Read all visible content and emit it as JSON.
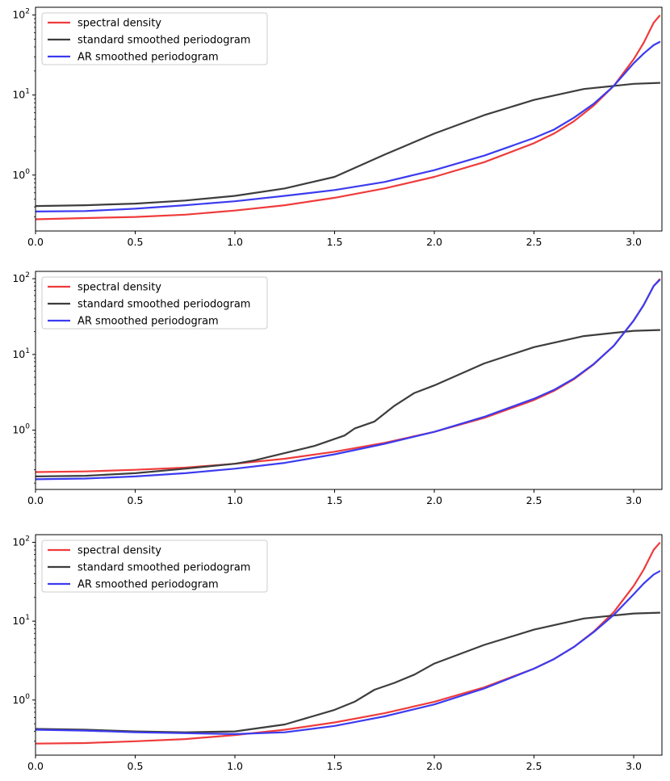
{
  "chart_data": [
    {
      "type": "line",
      "title": "",
      "xlabel": "",
      "ylabel": "",
      "yscale": "log",
      "xlim": [
        0,
        3.1416
      ],
      "ylim": [
        0.2,
        125
      ],
      "xticks": [
        "0.0",
        "0.5",
        "1.0",
        "1.5",
        "2.0",
        "2.5",
        "3.0"
      ],
      "yticks": [
        {
          "base": "10",
          "exp": "0"
        },
        {
          "base": "10",
          "exp": "1"
        },
        {
          "base": "10",
          "exp": "2"
        }
      ],
      "legend_position": "top-left",
      "series": [
        {
          "name": "spectral density",
          "color": "#ef3b3b",
          "x": [
            0,
            0.25,
            0.5,
            0.75,
            1.0,
            1.25,
            1.5,
            1.75,
            2.0,
            2.25,
            2.5,
            2.6,
            2.7,
            2.8,
            2.9,
            3.0,
            3.05,
            3.1,
            3.13
          ],
          "y": [
            0.28,
            0.29,
            0.3,
            0.32,
            0.36,
            0.42,
            0.52,
            0.68,
            0.95,
            1.45,
            2.5,
            3.3,
            4.7,
            7.4,
            13,
            28,
            45,
            80,
            98
          ]
        },
        {
          "name": "standard smoothed periodogram",
          "color": "#3d3d3d",
          "x": [
            0,
            0.25,
            0.5,
            0.75,
            1.0,
            1.25,
            1.5,
            1.75,
            2.0,
            2.25,
            2.5,
            2.75,
            3.0,
            3.13
          ],
          "y": [
            0.41,
            0.42,
            0.44,
            0.48,
            0.55,
            0.68,
            0.95,
            1.8,
            3.3,
            5.6,
            8.7,
            11.9,
            13.8,
            14.2
          ]
        },
        {
          "name": "AR smoothed periodogram",
          "color": "#3b3bef",
          "x": [
            0,
            0.25,
            0.5,
            0.75,
            1.0,
            1.25,
            1.5,
            1.75,
            2.0,
            2.25,
            2.5,
            2.6,
            2.7,
            2.8,
            2.9,
            3.0,
            3.05,
            3.1,
            3.13
          ],
          "y": [
            0.35,
            0.355,
            0.38,
            0.42,
            0.47,
            0.55,
            0.65,
            0.82,
            1.15,
            1.75,
            2.9,
            3.7,
            5.2,
            7.8,
            13,
            25,
            33,
            42,
            46
          ]
        }
      ]
    },
    {
      "type": "line",
      "title": "",
      "xlabel": "",
      "ylabel": "",
      "yscale": "log",
      "xlim": [
        0,
        3.1416
      ],
      "ylim": [
        0.165,
        125
      ],
      "xticks": [
        "0.0",
        "0.5",
        "1.0",
        "1.5",
        "2.0",
        "2.5",
        "3.0"
      ],
      "yticks": [
        {
          "base": "10",
          "exp": "0"
        },
        {
          "base": "10",
          "exp": "1"
        },
        {
          "base": "10",
          "exp": "2"
        }
      ],
      "legend_position": "top-left",
      "series": [
        {
          "name": "spectral density",
          "color": "#ef3b3b",
          "x": [
            0,
            0.25,
            0.5,
            0.75,
            1.0,
            1.25,
            1.5,
            1.75,
            2.0,
            2.25,
            2.5,
            2.6,
            2.7,
            2.8,
            2.9,
            3.0,
            3.05,
            3.1,
            3.13
          ],
          "y": [
            0.28,
            0.285,
            0.3,
            0.32,
            0.36,
            0.42,
            0.52,
            0.68,
            0.95,
            1.45,
            2.5,
            3.3,
            4.7,
            7.4,
            13,
            28,
            45,
            80,
            98
          ]
        },
        {
          "name": "standard smoothed periodogram",
          "color": "#3d3d3d",
          "x": [
            0,
            0.25,
            0.5,
            0.75,
            1.0,
            1.1,
            1.25,
            1.4,
            1.55,
            1.6,
            1.7,
            1.8,
            1.9,
            2.0,
            2.25,
            2.5,
            2.75,
            3.0,
            3.13
          ],
          "y": [
            0.245,
            0.25,
            0.27,
            0.31,
            0.36,
            0.4,
            0.5,
            0.62,
            0.85,
            1.05,
            1.3,
            2.1,
            3.1,
            3.9,
            7.6,
            12.5,
            17.5,
            20.5,
            21
          ]
        },
        {
          "name": "AR smoothed periodogram",
          "color": "#3b3bef",
          "x": [
            0,
            0.25,
            0.5,
            0.75,
            1.0,
            1.25,
            1.5,
            1.75,
            2.0,
            2.25,
            2.5,
            2.6,
            2.7,
            2.8,
            2.9,
            3.0,
            3.05,
            3.1,
            3.13
          ],
          "y": [
            0.225,
            0.23,
            0.245,
            0.27,
            0.31,
            0.37,
            0.48,
            0.66,
            0.95,
            1.5,
            2.6,
            3.4,
            4.8,
            7.5,
            13,
            28,
            45,
            80,
            96
          ]
        }
      ]
    },
    {
      "type": "line",
      "title": "",
      "xlabel": "",
      "ylabel": "",
      "yscale": "log",
      "xlim": [
        0,
        3.1416
      ],
      "ylim": [
        0.2,
        125
      ],
      "xticks": [
        "0.0",
        "0.5",
        "1.0",
        "1.5",
        "2.0",
        "2.5",
        "3.0"
      ],
      "yticks": [
        {
          "base": "10",
          "exp": "0"
        },
        {
          "base": "10",
          "exp": "1"
        },
        {
          "base": "10",
          "exp": "2"
        }
      ],
      "legend_position": "top-left",
      "series": [
        {
          "name": "spectral density",
          "color": "#ef3b3b",
          "x": [
            0,
            0.25,
            0.5,
            0.75,
            1.0,
            1.25,
            1.5,
            1.75,
            2.0,
            2.25,
            2.5,
            2.6,
            2.7,
            2.8,
            2.9,
            3.0,
            3.05,
            3.1,
            3.13
          ],
          "y": [
            0.28,
            0.285,
            0.3,
            0.32,
            0.36,
            0.42,
            0.52,
            0.68,
            0.95,
            1.45,
            2.5,
            3.3,
            4.7,
            7.4,
            13,
            28,
            45,
            80,
            98
          ]
        },
        {
          "name": "standard smoothed periodogram",
          "color": "#3d3d3d",
          "x": [
            0,
            0.25,
            0.5,
            0.75,
            1.0,
            1.25,
            1.5,
            1.6,
            1.7,
            1.8,
            1.9,
            2.0,
            2.25,
            2.5,
            2.75,
            3.0,
            3.13
          ],
          "y": [
            0.43,
            0.42,
            0.4,
            0.39,
            0.4,
            0.49,
            0.75,
            0.95,
            1.35,
            1.65,
            2.1,
            2.9,
            5.0,
            7.8,
            10.8,
            12.5,
            12.8
          ]
        },
        {
          "name": "AR smoothed periodogram",
          "color": "#3b3bef",
          "x": [
            0,
            0.25,
            0.5,
            0.75,
            1.0,
            1.25,
            1.5,
            1.75,
            2.0,
            2.25,
            2.5,
            2.6,
            2.7,
            2.8,
            2.9,
            3.0,
            3.05,
            3.1,
            3.13
          ],
          "y": [
            0.42,
            0.41,
            0.39,
            0.38,
            0.37,
            0.39,
            0.47,
            0.62,
            0.88,
            1.4,
            2.5,
            3.3,
            4.7,
            7.3,
            12,
            22,
            30,
            39,
            43
          ]
        }
      ]
    }
  ]
}
